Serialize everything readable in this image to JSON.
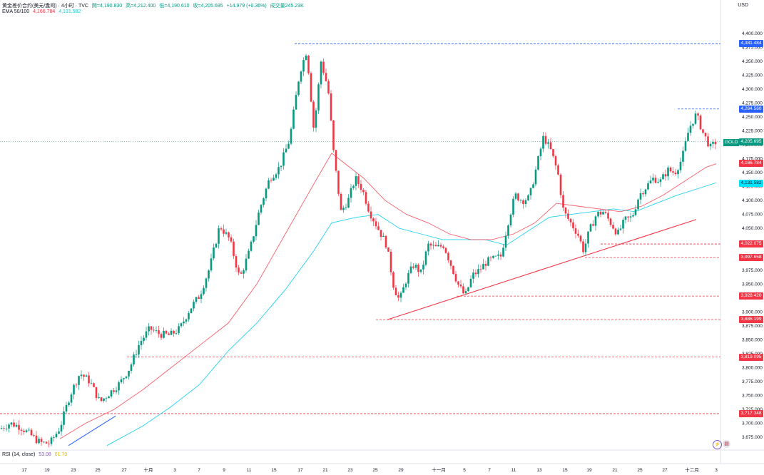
{
  "header": {
    "symbol": "黄金差价合约(美元/盎司) · 4小时 · TVC",
    "open": "開=4,190.830",
    "high": "高=4,212.400",
    "low": "低=4,190.610",
    "close": "收=4,205.695",
    "change": "+14.979 (+0.36%)",
    "volume": "成交量245.23K",
    "ema_label": "EMA 50/100",
    "ema50": "4,166.784",
    "ema100": "4,131.582",
    "currency": "USD"
  },
  "rsi": {
    "label": "RSI (14, close)",
    "v1": "53.08",
    "v2": "61.79"
  },
  "symbol_label": "GOLD",
  "price_tags": [
    {
      "text": "4,381.484",
      "price": 4381.484,
      "color": "blue"
    },
    {
      "text": "4,264.560",
      "price": 4264.56,
      "color": "blue"
    },
    {
      "text": "4,205.695",
      "price": 4205.695,
      "color": "green"
    },
    {
      "text": "4,166.784",
      "price": 4166.784,
      "color": "red"
    },
    {
      "text": "4,131.582",
      "price": 4131.582,
      "color": "cyan"
    },
    {
      "text": "4,022.075",
      "price": 4022.075,
      "color": "red"
    },
    {
      "text": "3,997.658",
      "price": 3997.658,
      "color": "red"
    },
    {
      "text": "3,928.420",
      "price": 3928.42,
      "color": "red"
    },
    {
      "text": "3,886.199",
      "price": 3886.199,
      "color": "red"
    },
    {
      "text": "3,819.095",
      "price": 3819.095,
      "color": "red"
    },
    {
      "text": "3,717.348",
      "price": 3717.348,
      "color": "red"
    }
  ],
  "chart_data": {
    "type": "candlestick",
    "y_ticks": [
      4400,
      4375,
      4350,
      4325,
      4300,
      4275,
      4250,
      4225,
      4200,
      4175,
      4150,
      4125,
      4100,
      4075,
      4050,
      4025,
      4000,
      3975,
      3950,
      3925,
      3900,
      3875,
      3850,
      3825,
      3800,
      3775,
      3750,
      3725,
      3700,
      3675
    ],
    "ylim": [
      3650,
      4425
    ],
    "x_labels": [
      "17",
      "19",
      "23",
      "25",
      "27",
      "十月",
      "3",
      "7",
      "9",
      "11",
      "15",
      "17",
      "21",
      "23",
      "25",
      "29",
      "十一月",
      "5",
      "7",
      "11",
      "13",
      "15",
      "19",
      "21",
      "25",
      "27",
      "十二月",
      "3"
    ],
    "close_path": [
      [
        0,
        3690
      ],
      [
        14,
        3700
      ],
      [
        28,
        3694
      ],
      [
        42,
        3680
      ],
      [
        56,
        3665
      ],
      [
        70,
        3664
      ],
      [
        84,
        3692
      ],
      [
        98,
        3750
      ],
      [
        112,
        3790
      ],
      [
        126,
        3775
      ],
      [
        140,
        3738
      ],
      [
        154,
        3755
      ],
      [
        168,
        3772
      ],
      [
        182,
        3800
      ],
      [
        196,
        3845
      ],
      [
        210,
        3870
      ],
      [
        224,
        3860
      ],
      [
        238,
        3858
      ],
      [
        252,
        3870
      ],
      [
        266,
        3905
      ],
      [
        280,
        3930
      ],
      [
        294,
        3980
      ],
      [
        308,
        4055
      ],
      [
        322,
        4030
      ],
      [
        336,
        3960
      ],
      [
        350,
        4010
      ],
      [
        364,
        4085
      ],
      [
        378,
        4140
      ],
      [
        392,
        4160
      ],
      [
        406,
        4210
      ],
      [
        420,
        4330
      ],
      [
        430,
        4370
      ],
      [
        440,
        4225
      ],
      [
        450,
        4350
      ],
      [
        460,
        4300
      ],
      [
        468,
        4180
      ],
      [
        478,
        4080
      ],
      [
        488,
        4100
      ],
      [
        498,
        4140
      ],
      [
        508,
        4120
      ],
      [
        518,
        4080
      ],
      [
        530,
        4050
      ],
      [
        542,
        4020
      ],
      [
        552,
        3945
      ],
      [
        560,
        3920
      ],
      [
        570,
        3960
      ],
      [
        580,
        3985
      ],
      [
        590,
        3970
      ],
      [
        600,
        4020
      ],
      [
        612,
        4015
      ],
      [
        622,
        4020
      ],
      [
        632,
        3985
      ],
      [
        642,
        3950
      ],
      [
        652,
        3928
      ],
      [
        662,
        3965
      ],
      [
        672,
        3975
      ],
      [
        682,
        3990
      ],
      [
        692,
        3995
      ],
      [
        702,
        4000
      ],
      [
        712,
        4060
      ],
      [
        722,
        4110
      ],
      [
        732,
        4100
      ],
      [
        742,
        4105
      ],
      [
        752,
        4160
      ],
      [
        762,
        4215
      ],
      [
        772,
        4190
      ],
      [
        782,
        4150
      ],
      [
        790,
        4080
      ],
      [
        800,
        4060
      ],
      [
        810,
        4040
      ],
      [
        818,
        4010
      ],
      [
        826,
        4045
      ],
      [
        836,
        4075
      ],
      [
        846,
        4080
      ],
      [
        856,
        4060
      ],
      [
        866,
        4040
      ],
      [
        876,
        4065
      ],
      [
        886,
        4070
      ],
      [
        896,
        4110
      ],
      [
        906,
        4125
      ],
      [
        916,
        4140
      ],
      [
        926,
        4135
      ],
      [
        936,
        4155
      ],
      [
        946,
        4150
      ],
      [
        956,
        4175
      ],
      [
        966,
        4230
      ],
      [
        976,
        4255
      ],
      [
        986,
        4220
      ],
      [
        996,
        4195
      ],
      [
        1004,
        4206
      ]
    ],
    "ema50_path": [
      [
        84,
        3672
      ],
      [
        120,
        3700
      ],
      [
        160,
        3725
      ],
      [
        200,
        3760
      ],
      [
        240,
        3800
      ],
      [
        280,
        3840
      ],
      [
        320,
        3880
      ],
      [
        360,
        3950
      ],
      [
        400,
        4040
      ],
      [
        440,
        4130
      ],
      [
        465,
        4185
      ],
      [
        490,
        4160
      ],
      [
        510,
        4140
      ],
      [
        540,
        4100
      ],
      [
        570,
        4075
      ],
      [
        600,
        4060
      ],
      [
        630,
        4040
      ],
      [
        660,
        4030
      ],
      [
        690,
        4030
      ],
      [
        720,
        4040
      ],
      [
        750,
        4060
      ],
      [
        780,
        4095
      ],
      [
        810,
        4090
      ],
      [
        840,
        4085
      ],
      [
        870,
        4080
      ],
      [
        900,
        4090
      ],
      [
        930,
        4110
      ],
      [
        960,
        4135
      ],
      [
        990,
        4160
      ],
      [
        1004,
        4166
      ]
    ],
    "ema100_path": [
      [
        150,
        3660
      ],
      [
        200,
        3695
      ],
      [
        240,
        3730
      ],
      [
        280,
        3770
      ],
      [
        320,
        3830
      ],
      [
        360,
        3880
      ],
      [
        400,
        3940
      ],
      [
        440,
        4010
      ],
      [
        465,
        4060
      ],
      [
        500,
        4070
      ],
      [
        530,
        4075
      ],
      [
        560,
        4050
      ],
      [
        590,
        4040
      ],
      [
        620,
        4030
      ],
      [
        650,
        4030
      ],
      [
        680,
        4030
      ],
      [
        710,
        4020
      ],
      [
        740,
        4045
      ],
      [
        770,
        4070
      ],
      [
        800,
        4075
      ],
      [
        830,
        4080
      ],
      [
        860,
        4085
      ],
      [
        890,
        4080
      ],
      [
        920,
        4095
      ],
      [
        950,
        4110
      ],
      [
        980,
        4122
      ],
      [
        1004,
        4132
      ]
    ]
  }
}
